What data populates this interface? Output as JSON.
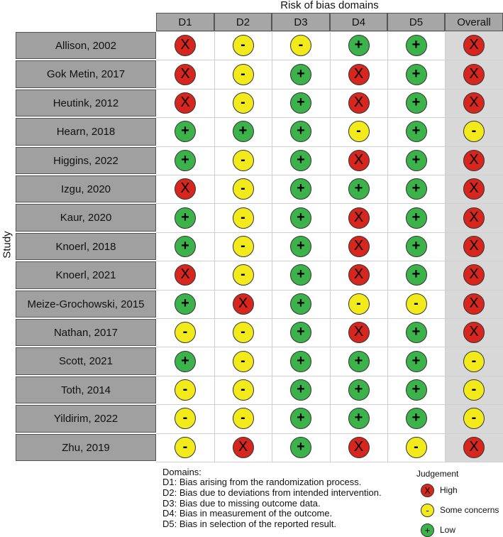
{
  "chart_data": {
    "type": "table",
    "title": "Risk of bias domains",
    "ylabel": "Study",
    "columns": [
      "D1",
      "D2",
      "D3",
      "D4",
      "D5",
      "Overall"
    ],
    "rows": [
      {
        "study": "Allison, 2002",
        "judgements": [
          "high",
          "some",
          "some",
          "low",
          "low",
          "high"
        ]
      },
      {
        "study": "Gok Metin, 2017",
        "judgements": [
          "high",
          "some",
          "low",
          "high",
          "low",
          "high"
        ]
      },
      {
        "study": "Heutink, 2012",
        "judgements": [
          "high",
          "some",
          "low",
          "high",
          "low",
          "high"
        ]
      },
      {
        "study": "Hearn, 2018",
        "judgements": [
          "low",
          "low",
          "low",
          "some",
          "low",
          "some"
        ]
      },
      {
        "study": "Higgins, 2022",
        "judgements": [
          "low",
          "some",
          "low",
          "high",
          "low",
          "high"
        ]
      },
      {
        "study": "Izgu, 2020",
        "judgements": [
          "high",
          "some",
          "low",
          "low",
          "low",
          "high"
        ]
      },
      {
        "study": "Kaur, 2020",
        "judgements": [
          "low",
          "some",
          "low",
          "high",
          "low",
          "high"
        ]
      },
      {
        "study": "Knoerl, 2018",
        "judgements": [
          "low",
          "some",
          "low",
          "high",
          "low",
          "high"
        ]
      },
      {
        "study": "Knoerl, 2021",
        "judgements": [
          "high",
          "some",
          "low",
          "high",
          "low",
          "high"
        ]
      },
      {
        "study": "Meize-Grochowski, 2015",
        "judgements": [
          "low",
          "high",
          "low",
          "some",
          "some",
          "high"
        ]
      },
      {
        "study": "Nathan, 2017",
        "judgements": [
          "some",
          "some",
          "low",
          "high",
          "low",
          "high"
        ]
      },
      {
        "study": "Scott, 2021",
        "judgements": [
          "low",
          "some",
          "low",
          "low",
          "low",
          "some"
        ]
      },
      {
        "study": "Toth, 2014",
        "judgements": [
          "some",
          "some",
          "low",
          "low",
          "low",
          "some"
        ]
      },
      {
        "study": "Yildirim, 2022",
        "judgements": [
          "some",
          "some",
          "low",
          "low",
          "low",
          "some"
        ]
      },
      {
        "study": "Zhu, 2019",
        "judgements": [
          "some",
          "high",
          "low",
          "high",
          "some",
          "high"
        ]
      }
    ],
    "symbols": {
      "high": "X",
      "some": "-",
      "low": "+"
    },
    "colors": {
      "high": "#d7261e",
      "some": "#f2ea1b",
      "low": "#3cb34a"
    },
    "domains": {
      "title": "Domains:",
      "lines": [
        "D1: Bias arising from the randomization process.",
        "D2: Bias due to deviations from intended intervention.",
        "D3: Bias due to missing outcome data.",
        "D4: Bias in measurement of the outcome.",
        "D5: Bias in selection of the reported result."
      ]
    },
    "legend": {
      "title": "Judgement",
      "items": [
        {
          "key": "high",
          "label": "High"
        },
        {
          "key": "some",
          "label": "Some concerns"
        },
        {
          "key": "low",
          "label": "Low"
        }
      ]
    }
  }
}
